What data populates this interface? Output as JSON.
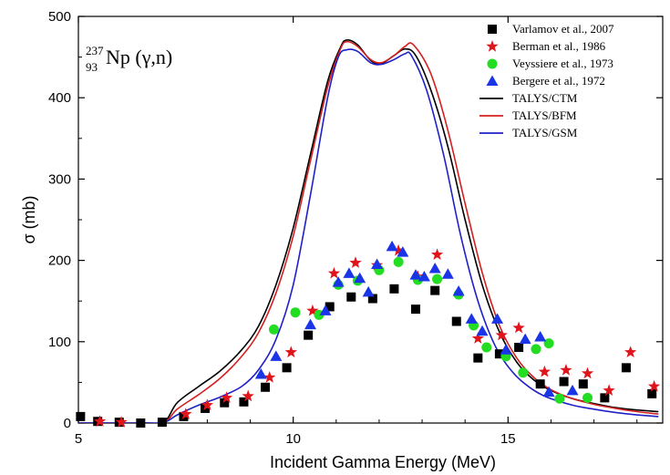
{
  "chart_data": {
    "type": "scatter",
    "annotation": {
      "mass": "237",
      "atomic": "93",
      "text": "Np (γ,n)"
    },
    "xlabel": "Incident Gamma Energy (MeV)",
    "ylabel": "σ (mb)",
    "xlim": [
      5,
      18.6
    ],
    "ylim": [
      0,
      500
    ],
    "xticks": [
      5,
      10,
      15
    ],
    "yticks": [
      0,
      100,
      200,
      300,
      400,
      500
    ],
    "legend_position": "top-right",
    "series": [
      {
        "name": "Varlamov et al., 2007",
        "kind": "marker",
        "marker": "square",
        "color": "#000000",
        "points": [
          [
            5.05,
            8
          ],
          [
            5.45,
            2
          ],
          [
            5.95,
            1
          ],
          [
            6.45,
            0
          ],
          [
            6.95,
            1
          ],
          [
            7.45,
            8
          ],
          [
            7.95,
            18
          ],
          [
            8.4,
            25
          ],
          [
            8.85,
            26
          ],
          [
            9.35,
            44
          ],
          [
            9.85,
            68
          ],
          [
            10.35,
            108
          ],
          [
            10.85,
            143
          ],
          [
            11.35,
            155
          ],
          [
            11.85,
            153
          ],
          [
            12.35,
            165
          ],
          [
            12.85,
            140
          ],
          [
            13.3,
            163
          ],
          [
            13.8,
            125
          ],
          [
            14.3,
            80
          ],
          [
            14.8,
            85
          ],
          [
            15.25,
            93
          ],
          [
            15.75,
            48
          ],
          [
            16.3,
            51
          ],
          [
            16.75,
            48
          ],
          [
            17.25,
            31
          ],
          [
            17.75,
            68
          ],
          [
            18.35,
            36
          ]
        ]
      },
      {
        "name": "Berman et al., 1986",
        "kind": "marker",
        "marker": "star",
        "color": "#e0151b",
        "points": [
          [
            5.5,
            2
          ],
          [
            6.0,
            1
          ],
          [
            7.5,
            11
          ],
          [
            8.0,
            22
          ],
          [
            8.45,
            31
          ],
          [
            8.95,
            33
          ],
          [
            9.45,
            56
          ],
          [
            9.95,
            87
          ],
          [
            10.45,
            138
          ],
          [
            10.95,
            184
          ],
          [
            11.45,
            197
          ],
          [
            11.95,
            194
          ],
          [
            12.45,
            212
          ],
          [
            12.9,
            180
          ],
          [
            13.35,
            207
          ],
          [
            14.3,
            104
          ],
          [
            14.85,
            108
          ],
          [
            15.25,
            117
          ],
          [
            15.85,
            63
          ],
          [
            16.35,
            65
          ],
          [
            16.85,
            61
          ],
          [
            17.35,
            40
          ],
          [
            17.85,
            87
          ],
          [
            18.4,
            45
          ]
        ]
      },
      {
        "name": "Veyssiere et al., 1973",
        "kind": "marker",
        "marker": "circle",
        "color": "#22dd22",
        "points": [
          [
            9.55,
            115
          ],
          [
            10.05,
            136
          ],
          [
            10.6,
            133
          ],
          [
            11.05,
            170
          ],
          [
            11.5,
            175
          ],
          [
            12.0,
            188
          ],
          [
            12.45,
            198
          ],
          [
            12.9,
            176
          ],
          [
            13.35,
            177
          ],
          [
            13.85,
            158
          ],
          [
            14.2,
            120
          ],
          [
            14.5,
            93
          ],
          [
            14.95,
            82
          ],
          [
            15.35,
            62
          ],
          [
            15.65,
            91
          ],
          [
            15.95,
            98
          ],
          [
            16.2,
            30
          ],
          [
            16.85,
            31
          ]
        ]
      },
      {
        "name": "Bergere et al., 1972",
        "kind": "marker",
        "marker": "triangle",
        "color": "#1a35e8",
        "points": [
          [
            9.25,
            60
          ],
          [
            9.6,
            82
          ],
          [
            10.4,
            121
          ],
          [
            10.75,
            138
          ],
          [
            11.05,
            173
          ],
          [
            11.3,
            184
          ],
          [
            11.55,
            178
          ],
          [
            11.75,
            161
          ],
          [
            11.95,
            195
          ],
          [
            12.3,
            217
          ],
          [
            12.55,
            210
          ],
          [
            12.85,
            182
          ],
          [
            13.05,
            180
          ],
          [
            13.3,
            190
          ],
          [
            13.6,
            183
          ],
          [
            13.85,
            162
          ],
          [
            14.15,
            128
          ],
          [
            14.4,
            113
          ],
          [
            14.75,
            128
          ],
          [
            14.95,
            90
          ],
          [
            15.4,
            103
          ],
          [
            15.75,
            106
          ],
          [
            15.95,
            38
          ],
          [
            16.5,
            40
          ]
        ]
      },
      {
        "name": "TALYS/CTM",
        "kind": "line",
        "color": "#000000",
        "points": [
          [
            5,
            0
          ],
          [
            6.5,
            0
          ],
          [
            7.0,
            2
          ],
          [
            7.3,
            25
          ],
          [
            7.8,
            45
          ],
          [
            8.3,
            64
          ],
          [
            8.8,
            90
          ],
          [
            9.2,
            120
          ],
          [
            9.6,
            170
          ],
          [
            10.0,
            240
          ],
          [
            10.4,
            330
          ],
          [
            10.8,
            420
          ],
          [
            11.1,
            462
          ],
          [
            11.25,
            471
          ],
          [
            11.5,
            465
          ],
          [
            11.8,
            446
          ],
          [
            12.05,
            442
          ],
          [
            12.35,
            452
          ],
          [
            12.6,
            460
          ],
          [
            12.85,
            452
          ],
          [
            13.2,
            410
          ],
          [
            13.6,
            340
          ],
          [
            14.0,
            250
          ],
          [
            14.4,
            170
          ],
          [
            14.8,
            112
          ],
          [
            15.2,
            75
          ],
          [
            15.6,
            53
          ],
          [
            16.0,
            40
          ],
          [
            16.5,
            30
          ],
          [
            17.0,
            24
          ],
          [
            17.5,
            19
          ],
          [
            18.0,
            16
          ],
          [
            18.5,
            14
          ]
        ]
      },
      {
        "name": "TALYS/BFM",
        "kind": "line",
        "color": "#d42020",
        "points": [
          [
            5,
            0
          ],
          [
            6.5,
            0
          ],
          [
            7.0,
            1
          ],
          [
            7.3,
            17
          ],
          [
            7.8,
            35
          ],
          [
            8.3,
            55
          ],
          [
            8.8,
            82
          ],
          [
            9.2,
            112
          ],
          [
            9.6,
            160
          ],
          [
            10.0,
            230
          ],
          [
            10.4,
            322
          ],
          [
            10.8,
            413
          ],
          [
            11.1,
            460
          ],
          [
            11.25,
            469
          ],
          [
            11.5,
            463
          ],
          [
            11.8,
            447
          ],
          [
            12.05,
            443
          ],
          [
            12.35,
            452
          ],
          [
            12.6,
            463
          ],
          [
            12.8,
            465
          ],
          [
            13.2,
            430
          ],
          [
            13.6,
            360
          ],
          [
            14.0,
            270
          ],
          [
            14.4,
            185
          ],
          [
            14.8,
            120
          ],
          [
            15.2,
            80
          ],
          [
            15.6,
            56
          ],
          [
            16.0,
            41
          ],
          [
            16.5,
            30
          ],
          [
            17.0,
            23
          ],
          [
            17.5,
            18
          ],
          [
            18.0,
            14
          ],
          [
            18.5,
            11
          ]
        ]
      },
      {
        "name": "TALYS/GSM",
        "kind": "line",
        "color": "#2020c8",
        "points": [
          [
            5,
            0
          ],
          [
            6.5,
            0
          ],
          [
            7.0,
            1
          ],
          [
            7.3,
            10
          ],
          [
            7.8,
            22
          ],
          [
            8.3,
            32
          ],
          [
            8.8,
            45
          ],
          [
            9.2,
            66
          ],
          [
            9.6,
            103
          ],
          [
            10.0,
            170
          ],
          [
            10.4,
            280
          ],
          [
            10.8,
            400
          ],
          [
            11.05,
            450
          ],
          [
            11.25,
            459
          ],
          [
            11.5,
            457
          ],
          [
            11.8,
            443
          ],
          [
            12.05,
            441
          ],
          [
            12.35,
            447
          ],
          [
            12.6,
            454
          ],
          [
            12.75,
            452
          ],
          [
            13.1,
            410
          ],
          [
            13.5,
            330
          ],
          [
            13.9,
            230
          ],
          [
            14.3,
            150
          ],
          [
            14.7,
            95
          ],
          [
            15.1,
            63
          ],
          [
            15.5,
            44
          ],
          [
            15.9,
            32
          ],
          [
            16.5,
            22
          ],
          [
            17.0,
            17
          ],
          [
            17.5,
            13
          ],
          [
            18.0,
            10
          ],
          [
            18.5,
            8
          ]
        ]
      }
    ]
  }
}
